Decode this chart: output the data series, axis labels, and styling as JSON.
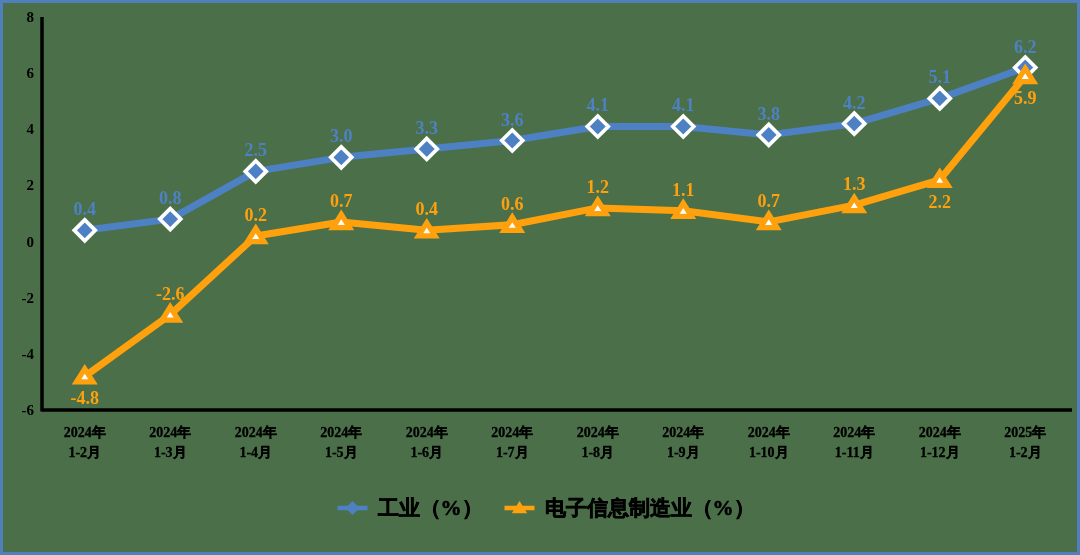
{
  "chart_data": {
    "type": "line",
    "categories": [
      "2024年\n1-2月",
      "2024年\n1-3月",
      "2024年\n1-4月",
      "2024年\n1-5月",
      "2024年\n1-6月",
      "2024年\n1-7月",
      "2024年\n1-8月",
      "2024年\n1-9月",
      "2024年\n1-10月",
      "2024年\n1-11月",
      "2024年\n1-12月",
      "2025年\n1-2月"
    ],
    "series": [
      {
        "name": "工业（%）",
        "color": "#4e81c4",
        "marker": "diamond",
        "values": [
          0.4,
          0.8,
          2.5,
          3.0,
          3.3,
          3.6,
          4.1,
          4.1,
          3.8,
          4.2,
          5.1,
          6.2
        ],
        "value_labels": [
          "0.4",
          "0.8",
          "2.5",
          "3.0",
          "3.3",
          "3.6",
          "4.1",
          "4.1",
          "3.8",
          "4.2",
          "5.1",
          "6.2"
        ]
      },
      {
        "name": "电子信息制造业（%）",
        "color": "#ffa10d",
        "marker": "triangle",
        "values": [
          -4.8,
          -2.6,
          0.2,
          0.7,
          0.4,
          0.6,
          1.2,
          1.1,
          0.7,
          1.3,
          2.2,
          5.9
        ],
        "value_labels": [
          "-4.8",
          "-2.6",
          "0.2",
          "0.7",
          "0.4",
          "0.6",
          "1.2",
          "1.1",
          "0.7",
          "1.3",
          "2.2",
          "5.9"
        ]
      }
    ],
    "ylim": [
      -6,
      8
    ],
    "yticks": [
      -6,
      -4,
      -2,
      0,
      2,
      4,
      6,
      8
    ],
    "legend": "bottom",
    "line_style": "solid"
  }
}
